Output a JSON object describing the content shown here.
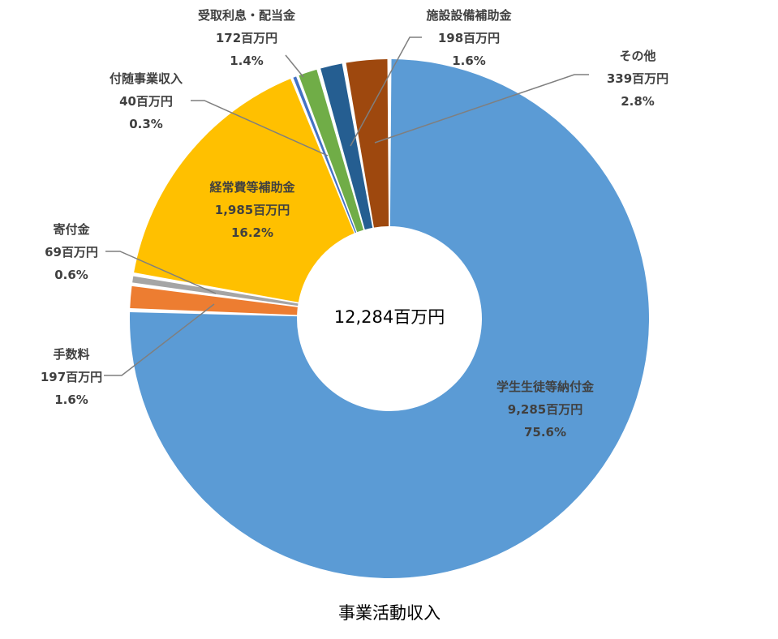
{
  "chart_data": {
    "type": "pie",
    "variant": "doughnut",
    "title": "事業活動収入",
    "center_label": "12,284百万円",
    "slices": [
      {
        "name": "学生生徒等納付金",
        "value_text": "9,285百万円",
        "percent_text": "75.6%",
        "percent": 75.6,
        "color": "#5B9BD5"
      },
      {
        "name": "手数料",
        "value_text": "197百万円",
        "percent_text": "1.6%",
        "percent": 1.6,
        "color": "#ED7D31"
      },
      {
        "name": "寄付金",
        "value_text": "69百万円",
        "percent_text": "0.6%",
        "percent": 0.6,
        "color": "#A5A5A5"
      },
      {
        "name": "経常費等補助金",
        "value_text": "1,985百万円",
        "percent_text": "16.2%",
        "percent": 16.2,
        "color": "#FFC000"
      },
      {
        "name": "付随事業収入",
        "value_text": "40百万円",
        "percent_text": "0.3%",
        "percent": 0.3,
        "color": "#4472C4"
      },
      {
        "name": "受取利息・配当金",
        "value_text": "172百万円",
        "percent_text": "1.4%",
        "percent": 1.4,
        "color": "#70AD47"
      },
      {
        "name": "施設設備補助金",
        "value_text": "198百万円",
        "percent_text": "1.6%",
        "percent": 1.6,
        "color": "#255E91"
      },
      {
        "name": "その他",
        "value_text": "339百万円",
        "percent_text": "2.8%",
        "percent": 2.8,
        "color": "#9E480E"
      }
    ]
  }
}
